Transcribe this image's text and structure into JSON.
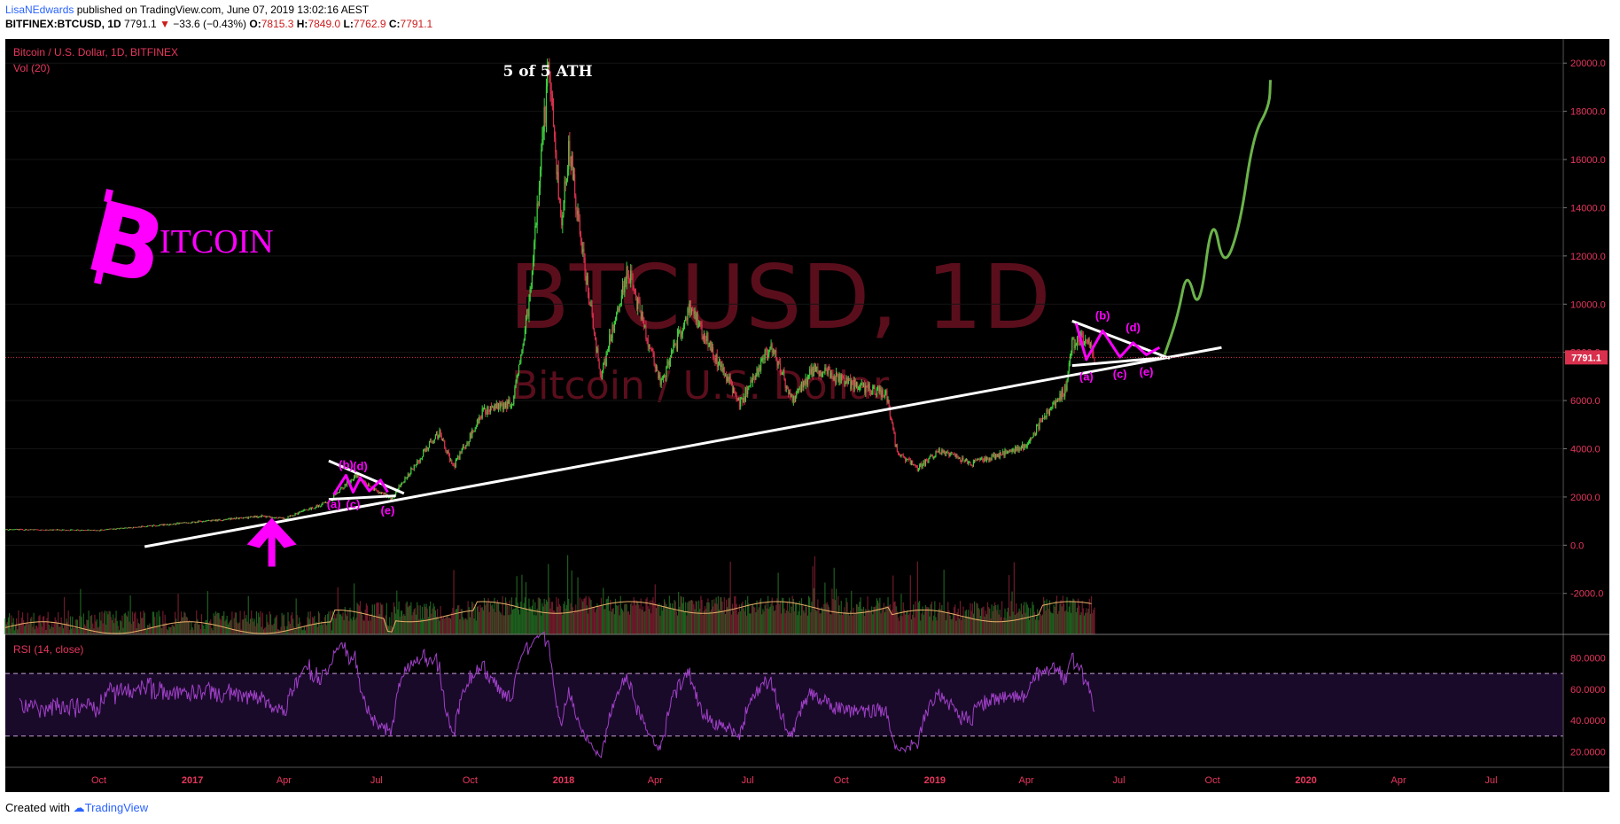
{
  "header": {
    "author": "LisaNEdwards",
    "published": "published on TradingView.com, June 07, 2019 13:02:16 AEST",
    "symbol": "BITFINEX:BTCUSD, 1D",
    "last": "7791.1",
    "change": "−33.6 (−0.43%)",
    "open_label": "O:",
    "open": "7815.3",
    "high_label": "H:",
    "high": "7849.0",
    "low_label": "L:",
    "low": "7762.9",
    "close_label": "C:",
    "close": "7791.1"
  },
  "footer": {
    "created_with": "Created with",
    "brand": "TradingView"
  },
  "colors": {
    "background": "#000000",
    "up": "#3ecf3e",
    "down": "#d8304d",
    "magenta": "#ff00ff",
    "rsi": "#a040c8",
    "projection": "#6bb34a"
  },
  "chart_data": {
    "type": "candlestick",
    "title": "Bitcoin / U.S. Dollar, 1D, BITFINEX",
    "volume_label": "Vol (20)",
    "watermark_main": "BTCUSD, 1D",
    "watermark_sub": "Bitcoin / U.S. Dollar",
    "logo_letter": "B",
    "logo_text": "ITCOIN",
    "current_price": 7791.1,
    "current_price_label": "7791.1",
    "price_axis_labels": [
      "20000.0",
      "18000.0",
      "16000.0",
      "14000.0",
      "12000.0",
      "10000.0",
      "8000.0",
      "6000.0",
      "4000.0",
      "2000.0",
      "0.0",
      "-2000.0"
    ],
    "price_axis_values": [
      20000,
      18000,
      16000,
      14000,
      12000,
      10000,
      8000,
      6000,
      4000,
      2000,
      0,
      -2000
    ],
    "ylim": [
      -3700,
      21000
    ],
    "x_axis_labels": [
      "Oct",
      "2017",
      "Apr",
      "Jul",
      "Oct",
      "2018",
      "Apr",
      "Jul",
      "Oct",
      "2019",
      "Apr",
      "Jul",
      "Oct",
      "2020",
      "Apr",
      "Jul"
    ],
    "x_axis_dates": [
      "2016-10-01",
      "2017-01-01",
      "2017-04-01",
      "2017-07-01",
      "2017-10-01",
      "2018-01-01",
      "2018-04-01",
      "2018-07-01",
      "2018-10-01",
      "2019-01-01",
      "2019-04-01",
      "2019-07-01",
      "2019-10-01",
      "2020-01-01",
      "2020-04-01",
      "2020-07-01"
    ],
    "xlim": [
      "2016-07-01",
      "2020-09-10"
    ],
    "price_path": [
      [
        "2016-07-01",
        650
      ],
      [
        "2016-10-01",
        620
      ],
      [
        "2017-01-01",
        950
      ],
      [
        "2017-03-10",
        1200
      ],
      [
        "2017-04-01",
        1100
      ],
      [
        "2017-05-15",
        1800
      ],
      [
        "2017-06-10",
        2900
      ],
      [
        "2017-06-25",
        2400
      ],
      [
        "2017-07-16",
        1900
      ],
      [
        "2017-08-05",
        3200
      ],
      [
        "2017-09-01",
        4700
      ],
      [
        "2017-09-14",
        3200
      ],
      [
        "2017-10-15",
        5600
      ],
      [
        "2017-11-12",
        5900
      ],
      [
        "2017-11-28",
        10000
      ],
      [
        "2017-12-17",
        19800
      ],
      [
        "2017-12-30",
        13500
      ],
      [
        "2018-01-06",
        16500
      ],
      [
        "2018-02-06",
        6900
      ],
      [
        "2018-03-05",
        11500
      ],
      [
        "2018-04-06",
        6700
      ],
      [
        "2018-05-05",
        9800
      ],
      [
        "2018-06-24",
        5900
      ],
      [
        "2018-07-24",
        8300
      ],
      [
        "2018-08-14",
        6000
      ],
      [
        "2018-09-05",
        7300
      ],
      [
        "2018-11-01",
        6400
      ],
      [
        "2018-11-14",
        6300
      ],
      [
        "2018-11-25",
        3800
      ],
      [
        "2018-12-15",
        3200
      ],
      [
        "2019-01-05",
        3900
      ],
      [
        "2019-02-07",
        3400
      ],
      [
        "2019-03-31",
        4100
      ],
      [
        "2019-04-15",
        5100
      ],
      [
        "2019-05-10",
        6500
      ],
      [
        "2019-05-16",
        8300
      ],
      [
        "2019-05-30",
        8700
      ],
      [
        "2019-06-07",
        7791
      ]
    ],
    "rsi": {
      "label": "RSI (14, close)",
      "axis_labels": [
        "80.0000",
        "60.0000",
        "40.0000",
        "20.0000"
      ],
      "axis_values": [
        80,
        60,
        40,
        20
      ],
      "upper_band": 70,
      "lower_band": 30,
      "ylim": [
        10,
        95
      ]
    },
    "annotations": {
      "ath_label": "5 of 5 ATH",
      "wave_labels_2017": [
        "(a)",
        "(b)",
        "(c)",
        "(d)",
        "(e)"
      ],
      "wave_labels_2019": [
        "(a)",
        "(b)",
        "(c)",
        "(d)",
        "(e)"
      ],
      "trendline": [
        [
          "2016-11-15",
          -60
        ],
        [
          "2019-10-10",
          8200
        ]
      ],
      "triangle_2017_top": [
        [
          "2017-05-15",
          3500
        ],
        [
          "2017-07-28",
          2150
        ]
      ],
      "triangle_2017_bottom": [
        [
          "2017-05-15",
          1900
        ],
        [
          "2017-07-20",
          2050
        ]
      ],
      "triangle_2019_top": [
        [
          "2019-05-16",
          9300
        ],
        [
          "2019-08-20",
          7750
        ]
      ],
      "triangle_2019_bottom": [
        [
          "2019-05-16",
          7450
        ],
        [
          "2019-08-20",
          7800
        ]
      ],
      "wave_path_2017": [
        [
          "2017-05-20",
          2100
        ],
        [
          "2017-06-01",
          2900
        ],
        [
          "2017-06-08",
          2200
        ],
        [
          "2017-06-15",
          2800
        ],
        [
          "2017-06-24",
          2250
        ],
        [
          "2017-07-05",
          2700
        ],
        [
          "2017-07-12",
          2200
        ]
      ],
      "wave_path_2019": [
        [
          "2019-05-20",
          9200
        ],
        [
          "2019-05-30",
          7700
        ],
        [
          "2019-06-15",
          8900
        ],
        [
          "2019-07-02",
          7800
        ],
        [
          "2019-07-15",
          8400
        ],
        [
          "2019-07-28",
          7900
        ],
        [
          "2019-08-10",
          8200
        ]
      ],
      "projection_path": [
        [
          "2019-08-15",
          7900
        ],
        [
          "2019-08-28",
          9500
        ],
        [
          "2019-09-06",
          11500
        ],
        [
          "2019-09-18",
          9500
        ],
        [
          "2019-10-01",
          13900
        ],
        [
          "2019-10-12",
          11400
        ],
        [
          "2019-10-28",
          13200
        ],
        [
          "2019-11-10",
          17000
        ],
        [
          "2019-11-26",
          18200
        ],
        [
          "2019-11-27",
          19300
        ]
      ]
    }
  }
}
